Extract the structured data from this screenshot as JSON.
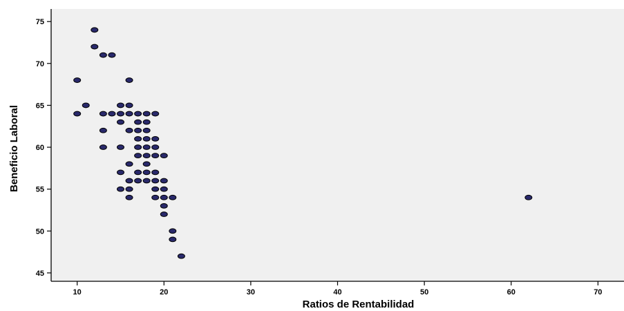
{
  "chart_data": {
    "type": "scatter",
    "title": "",
    "xlabel": "Ratios de Rentabilidad",
    "ylabel": "Beneficio Laboral",
    "xlim": [
      7,
      73
    ],
    "ylim": [
      44,
      76.5
    ],
    "xticks": [
      10,
      20,
      30,
      40,
      50,
      60,
      70
    ],
    "yticks": [
      45,
      50,
      55,
      60,
      65,
      70,
      75
    ],
    "grid": false,
    "legend": "none",
    "colors": {
      "plot_background": "#f0f0f0",
      "marker_fill": "#29296b",
      "marker_stroke": "#000000",
      "axis": "#000000"
    },
    "points": [
      [
        12,
        74
      ],
      [
        12,
        72
      ],
      [
        13,
        71
      ],
      [
        14,
        71
      ],
      [
        10,
        68
      ],
      [
        16,
        68
      ],
      [
        11,
        65
      ],
      [
        10,
        64
      ],
      [
        15,
        65
      ],
      [
        16,
        65
      ],
      [
        13,
        64
      ],
      [
        14,
        64
      ],
      [
        15,
        64
      ],
      [
        16,
        64
      ],
      [
        17,
        64
      ],
      [
        18,
        64
      ],
      [
        19,
        64
      ],
      [
        15,
        63
      ],
      [
        17,
        63
      ],
      [
        18,
        63
      ],
      [
        13,
        62
      ],
      [
        16,
        62
      ],
      [
        17,
        62
      ],
      [
        18,
        62
      ],
      [
        17,
        61
      ],
      [
        18,
        61
      ],
      [
        19,
        61
      ],
      [
        13,
        60
      ],
      [
        15,
        60
      ],
      [
        17,
        60
      ],
      [
        18,
        60
      ],
      [
        19,
        60
      ],
      [
        17,
        59
      ],
      [
        18,
        59
      ],
      [
        19,
        59
      ],
      [
        20,
        59
      ],
      [
        16,
        58
      ],
      [
        18,
        58
      ],
      [
        15,
        57
      ],
      [
        17,
        57
      ],
      [
        18,
        57
      ],
      [
        19,
        57
      ],
      [
        16,
        56
      ],
      [
        17,
        56
      ],
      [
        18,
        56
      ],
      [
        19,
        56
      ],
      [
        20,
        56
      ],
      [
        15,
        55
      ],
      [
        16,
        55
      ],
      [
        19,
        55
      ],
      [
        20,
        55
      ],
      [
        16,
        54
      ],
      [
        19,
        54
      ],
      [
        20,
        54
      ],
      [
        21,
        54
      ],
      [
        20,
        53
      ],
      [
        20,
        52
      ],
      [
        21,
        50
      ],
      [
        21,
        49
      ],
      [
        22,
        47
      ],
      [
        62,
        54
      ]
    ]
  }
}
